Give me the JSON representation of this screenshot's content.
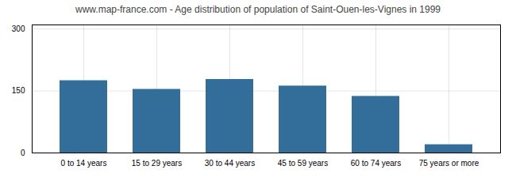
{
  "chart_data": {
    "type": "bar",
    "title": "www.map-france.com - Age distribution of population of Saint-Ouen-les-Vignes in 1999",
    "categories": [
      "0 to 14 years",
      "15 to 29 years",
      "30 to 44 years",
      "45 to 59 years",
      "60 to 74 years",
      "75 years or more"
    ],
    "values": [
      175,
      154,
      178,
      162,
      137,
      20
    ],
    "color": "#336d99",
    "ylim": [
      0,
      310
    ],
    "yticks": [
      0,
      150,
      300
    ],
    "grid": true
  }
}
